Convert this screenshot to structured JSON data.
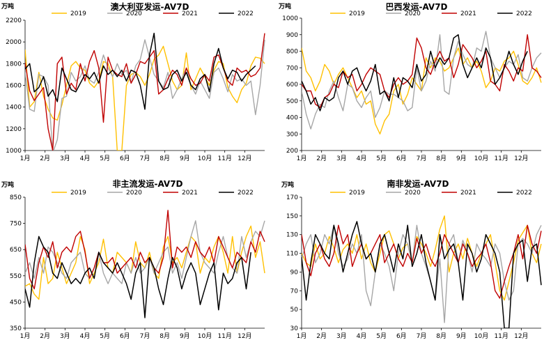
{
  "colors": {
    "2019": "#FFC000",
    "2020": "#A6A6A6",
    "2021": "#C00000",
    "2022": "#000000"
  },
  "chart_data": [
    {
      "type": "line",
      "title": "澳大利亚发运-AV7D",
      "unit": "万吨",
      "ylim": [
        1000,
        2200
      ],
      "yticks": [
        "1000",
        "1200",
        "1400",
        "1600",
        "1800",
        "2000",
        "2200"
      ],
      "xticks": [
        "1月",
        "2月",
        "3月",
        "4月",
        "5月",
        "6月",
        "7月",
        "8月",
        "9月",
        "10月",
        "11月",
        "12月"
      ],
      "x_points_per_year": 53,
      "series": [
        {
          "name": "2019",
          "values": [
            1930,
            1400,
            1450,
            1720,
            1500,
            1380,
            1300,
            1280,
            1420,
            1600,
            1780,
            1820,
            1760,
            1740,
            1620,
            1580,
            1640,
            1820,
            1800,
            1680,
            1000,
            1000,
            1600,
            1700,
            1720,
            1680,
            1600,
            1700,
            1840,
            1880,
            1960,
            1800,
            1640,
            1560,
            1600,
            1900,
            1560,
            1660,
            1760,
            1680,
            1600,
            1740,
            1820,
            1800,
            1580,
            1500,
            1440,
            1560,
            1620,
            1780,
            1860,
            1850,
            1800
          ]
        },
        {
          "name": "2020",
          "values": [
            1720,
            1380,
            1360,
            1700,
            1680,
            1600,
            900,
            1100,
            1480,
            1500,
            1720,
            1640,
            1680,
            1780,
            1650,
            1620,
            1720,
            1880,
            1760,
            1680,
            1800,
            1700,
            1740,
            1620,
            1780,
            1840,
            2020,
            1860,
            1700,
            1640,
            1580,
            1720,
            1480,
            1560,
            1660,
            1760,
            1600,
            1520,
            1640,
            1560,
            1480,
            1720,
            1760,
            1660,
            1540,
            1700,
            1640,
            1660,
            1600,
            1640,
            1330,
            1600,
            2020
          ]
        },
        {
          "name": "2021",
          "values": [
            1810,
            1550,
            1460,
            1520,
            1580,
            1200,
            1000,
            1800,
            1860,
            1520,
            1620,
            1560,
            1800,
            1640,
            1820,
            1920,
            1760,
            1260,
            1860,
            1740,
            1700,
            1680,
            1800,
            1620,
            1700,
            1820,
            1800,
            1860,
            1920,
            1520,
            1560,
            1660,
            1740,
            1700,
            1600,
            1760,
            1660,
            1600,
            1620,
            1700,
            1640,
            1860,
            1880,
            1760,
            1640,
            1600,
            1760,
            1720,
            1740,
            1680,
            1700,
            1760,
            2080
          ]
        },
        {
          "name": "2022",
          "values": [
            1750,
            1800,
            1540,
            1580,
            1680,
            1500,
            1560,
            1450,
            1760,
            1660,
            1560,
            1540,
            1620,
            1700,
            1660,
            1720,
            1620,
            1780,
            1700,
            1740,
            1680,
            1740,
            1640,
            1740,
            1720,
            1600,
            1380,
            1880,
            2080,
            1640,
            1560,
            1580,
            1700,
            1740,
            1640,
            1720,
            1600,
            1560,
            1660,
            1700,
            1540,
            1800,
            1940,
            1760,
            1660,
            1740,
            1720,
            1640,
            1700,
            1740,
            1780
          ]
        }
      ]
    },
    {
      "type": "line",
      "title": "巴西发运-AV7D",
      "unit": "万吨",
      "ylim": [
        200,
        1000
      ],
      "yticks": [
        "200",
        "300",
        "400",
        "500",
        "600",
        "700",
        "800",
        "900",
        "1000"
      ],
      "xticks": [
        "1月",
        "2月",
        "3月",
        "4月",
        "5月",
        "6月",
        "7月",
        "8月",
        "9月",
        "10月",
        "11月",
        "12月"
      ],
      "x_points_per_year": 53,
      "series": [
        {
          "name": "2019",
          "values": [
            820,
            680,
            640,
            560,
            620,
            720,
            680,
            600,
            660,
            700,
            640,
            580,
            520,
            560,
            480,
            500,
            360,
            300,
            380,
            420,
            560,
            600,
            480,
            540,
            640,
            600,
            560,
            760,
            700,
            760,
            740,
            680,
            700,
            760,
            820,
            720,
            760,
            700,
            740,
            680,
            580,
            620,
            700,
            680,
            740,
            760,
            800,
            720,
            620,
            600,
            640,
            700,
            610
          ]
        },
        {
          "name": "2020",
          "values": [
            560,
            420,
            330,
            420,
            480,
            460,
            560,
            620,
            520,
            440,
            600,
            580,
            500,
            460,
            520,
            560,
            400,
            460,
            560,
            540,
            540,
            520,
            500,
            440,
            460,
            700,
            560,
            620,
            740,
            680,
            900,
            560,
            540,
            760,
            860,
            780,
            720,
            700,
            820,
            800,
            920,
            760,
            700,
            640,
            700,
            740,
            720,
            780,
            640,
            620,
            700,
            760,
            790
          ]
        },
        {
          "name": "2021",
          "values": [
            600,
            560,
            560,
            480,
            460,
            520,
            540,
            600,
            580,
            680,
            640,
            660,
            560,
            600,
            660,
            700,
            680,
            660,
            560,
            520,
            600,
            640,
            600,
            620,
            660,
            880,
            820,
            700,
            660,
            740,
            800,
            740,
            760,
            640,
            720,
            840,
            800,
            760,
            700,
            740,
            800,
            620,
            600,
            560,
            720,
            680,
            620,
            700,
            680,
            900,
            700,
            680,
            640
          ]
        },
        {
          "name": "2022",
          "values": [
            620,
            560,
            480,
            520,
            440,
            520,
            500,
            520,
            640,
            680,
            600,
            680,
            700,
            620,
            560,
            620,
            720,
            540,
            560,
            500,
            640,
            520,
            640,
            620,
            580,
            720,
            620,
            660,
            800,
            700,
            760,
            720,
            760,
            880,
            900,
            720,
            640,
            700,
            760,
            700,
            820,
            760,
            600,
            640,
            700,
            800,
            720,
            660,
            740,
            800
          ]
        }
      ]
    },
    {
      "type": "line",
      "title": "非主流发运-AV7D",
      "unit": "万吨",
      "ylim": [
        350,
        850
      ],
      "yticks": [
        "350",
        "450",
        "550",
        "650",
        "750",
        "850"
      ],
      "xticks": [
        "1月",
        "2月",
        "3月",
        "4月",
        "5月",
        "6月",
        "7月",
        "8月",
        "9月",
        "10月",
        "11月",
        "12月"
      ],
      "x_points_per_year": 53,
      "series": [
        {
          "name": "2019",
          "values": [
            510,
            520,
            480,
            460,
            620,
            520,
            540,
            640,
            580,
            520,
            560,
            600,
            700,
            650,
            520,
            560,
            600,
            690,
            580,
            560,
            640,
            620,
            600,
            560,
            680,
            600,
            580,
            640,
            560,
            540,
            660,
            700,
            600,
            620,
            580,
            640,
            700,
            680,
            560,
            620,
            600,
            660,
            700,
            640,
            560,
            700,
            560,
            640,
            700,
            740,
            620,
            680,
            560
          ]
        },
        {
          "name": "2020",
          "values": [
            560,
            600,
            540,
            620,
            560,
            660,
            640,
            600,
            560,
            540,
            600,
            620,
            640,
            560,
            540,
            580,
            640,
            560,
            520,
            560,
            540,
            520,
            600,
            560,
            620,
            560,
            580,
            620,
            560,
            600,
            640,
            660,
            560,
            600,
            540,
            620,
            700,
            760,
            640,
            600,
            580,
            560,
            640,
            700,
            620,
            580,
            560,
            700,
            620,
            680,
            720,
            700,
            760
          ]
        },
        {
          "name": "2021",
          "values": [
            670,
            540,
            500,
            600,
            660,
            620,
            680,
            580,
            640,
            660,
            640,
            700,
            720,
            640,
            540,
            580,
            640,
            600,
            600,
            620,
            560,
            580,
            600,
            620,
            580,
            640,
            600,
            620,
            580,
            560,
            620,
            800,
            580,
            660,
            640,
            660,
            620,
            680,
            640,
            620,
            660,
            600,
            700,
            660,
            620,
            580,
            640,
            620,
            600,
            680,
            640,
            720,
            680
          ]
        },
        {
          "name": "2022",
          "values": [
            500,
            430,
            600,
            700,
            660,
            640,
            560,
            540,
            600,
            560,
            520,
            540,
            520,
            560,
            580,
            540,
            640,
            600,
            580,
            560,
            600,
            560,
            520,
            460,
            560,
            600,
            390,
            620,
            580,
            500,
            440,
            540,
            620,
            580,
            500,
            560,
            600,
            560,
            440,
            500,
            560,
            600,
            420,
            560,
            520,
            540,
            600,
            620,
            500,
            640
          ]
        }
      ]
    },
    {
      "type": "line",
      "title": "南非发运-AV7D",
      "unit": "万吨",
      "ylim": [
        30,
        170
      ],
      "yticks": [
        "30",
        "50",
        "70",
        "90",
        "110",
        "130",
        "150",
        "170"
      ],
      "xticks": [
        "1月",
        "2月",
        "3月",
        "4月",
        "5月",
        "6月",
        "7月",
        "8月",
        "9月",
        "10月",
        "11月",
        "12月"
      ],
      "x_points_per_year": 53,
      "series": [
        {
          "name": "2019",
          "values": [
            110,
            100,
            96,
            120,
            104,
            110,
            128,
            116,
            100,
            114,
            120,
            110,
            130,
            104,
            120,
            100,
            90,
            110,
            130,
            134,
            120,
            104,
            116,
            120,
            100,
            128,
            120,
            110,
            96,
            114,
            136,
            150,
            90,
            110,
            120,
            104,
            126,
            110,
            96,
            110,
            120,
            130,
            100,
            70,
            60,
            80,
            100,
            124,
            132,
            140,
            110,
            100,
            120
          ]
        },
        {
          "name": "2020",
          "values": [
            104,
            120,
            130,
            100,
            110,
            130,
            120,
            140,
            110,
            96,
            104,
            120,
            110,
            130,
            70,
            54,
            90,
            120,
            110,
            96,
            70,
            110,
            130,
            120,
            100,
            140,
            110,
            96,
            80,
            60,
            104,
            36,
            120,
            130,
            100,
            124,
            110,
            90,
            120,
            110,
            104,
            96,
            120,
            110,
            80,
            60,
            70,
            120,
            126,
            120,
            110,
            130,
            140
          ]
        },
        {
          "name": "2021",
          "values": [
            130,
            100,
            86,
            110,
            120,
            104,
            96,
            110,
            140,
            120,
            130,
            96,
            110,
            120,
            104,
            110,
            120,
            130,
            100,
            110,
            120,
            104,
            96,
            110,
            100,
            126,
            110,
            120,
            104,
            96,
            110,
            130,
            120,
            110,
            100,
            120,
            110,
            96,
            104,
            110,
            120,
            100,
            70,
            62,
            80,
            96,
            110,
            130,
            104,
            140,
            120,
            110,
            134
          ]
        },
        {
          "name": "2022",
          "values": [
            106,
            60,
            100,
            130,
            120,
            110,
            104,
            140,
            120,
            90,
            110,
            130,
            144,
            120,
            104,
            110,
            90,
            120,
            130,
            110,
            90,
            120,
            104,
            140,
            96,
            110,
            130,
            100,
            80,
            60,
            130,
            104,
            114,
            120,
            100,
            60,
            120,
            110,
            90,
            104,
            130,
            120,
            110,
            90,
            30,
            30,
            110,
            120,
            124,
            80,
            116,
            120,
            76
          ]
        }
      ]
    }
  ]
}
